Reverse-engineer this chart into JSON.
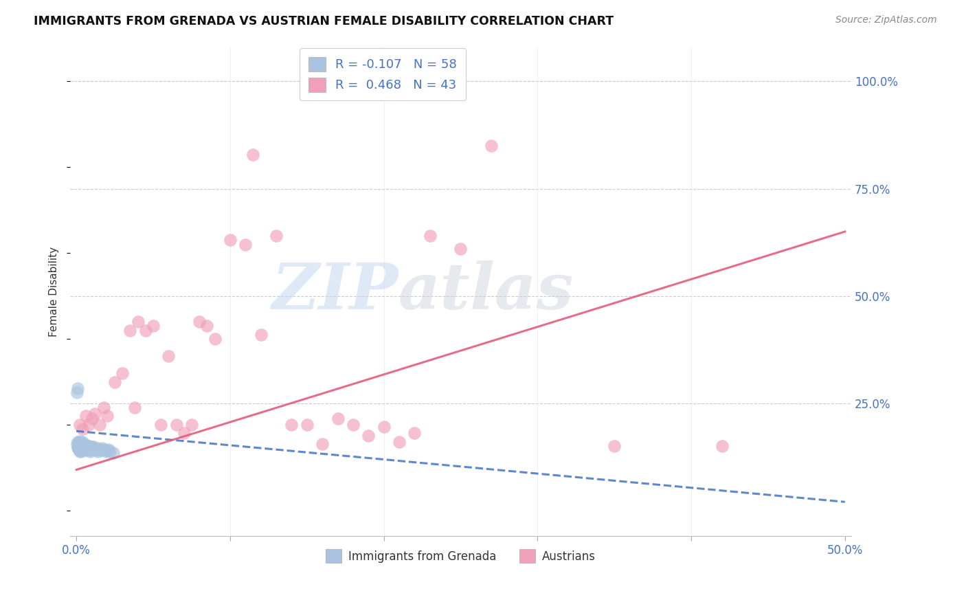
{
  "title": "IMMIGRANTS FROM GRENADA VS AUSTRIAN FEMALE DISABILITY CORRELATION CHART",
  "source": "Source: ZipAtlas.com",
  "ylabel": "Female Disability",
  "R1": "-0.107",
  "N1": "58",
  "R2": "0.468",
  "N2": "43",
  "blue_color": "#aac4e0",
  "blue_line_color": "#4472c4",
  "pink_color": "#f0a0b8",
  "pink_line_color": "#e05575",
  "watermark_zip": "ZIP",
  "watermark_atlas": "atlas",
  "legend_label1": "Immigrants from Grenada",
  "legend_label2": "Austrians",
  "xlim": [
    -0.004,
    0.504
  ],
  "ylim": [
    -0.06,
    1.08
  ],
  "blue_line_x0": 0.0,
  "blue_line_x1": 0.5,
  "blue_line_y0": 0.185,
  "blue_line_y1": 0.02,
  "pink_line_x0": 0.0,
  "pink_line_x1": 0.5,
  "pink_line_y0": 0.095,
  "pink_line_y1": 0.65,
  "blue_scatter_x": [
    0.0005,
    0.001,
    0.0008,
    0.0012,
    0.0015,
    0.001,
    0.002,
    0.0015,
    0.002,
    0.0025,
    0.002,
    0.0018,
    0.003,
    0.0022,
    0.003,
    0.0028,
    0.004,
    0.0032,
    0.003,
    0.0038,
    0.004,
    0.0042,
    0.005,
    0.0048,
    0.004,
    0.005,
    0.006,
    0.0052,
    0.005,
    0.006,
    0.007,
    0.006,
    0.007,
    0.008,
    0.007,
    0.008,
    0.009,
    0.0085,
    0.009,
    0.01,
    0.0095,
    0.011,
    0.012,
    0.011,
    0.013,
    0.014,
    0.015,
    0.014,
    0.016,
    0.017,
    0.018,
    0.019,
    0.02,
    0.021,
    0.022,
    0.024,
    0.001,
    0.0005
  ],
  "blue_scatter_y": [
    0.155,
    0.16,
    0.148,
    0.152,
    0.158,
    0.145,
    0.162,
    0.142,
    0.15,
    0.155,
    0.138,
    0.143,
    0.158,
    0.14,
    0.152,
    0.145,
    0.16,
    0.138,
    0.148,
    0.142,
    0.155,
    0.148,
    0.152,
    0.145,
    0.14,
    0.155,
    0.15,
    0.142,
    0.148,
    0.145,
    0.152,
    0.14,
    0.148,
    0.145,
    0.142,
    0.15,
    0.138,
    0.145,
    0.142,
    0.148,
    0.14,
    0.145,
    0.142,
    0.148,
    0.14,
    0.145,
    0.142,
    0.138,
    0.14,
    0.145,
    0.142,
    0.138,
    0.14,
    0.142,
    0.138,
    0.135,
    0.285,
    0.275
  ],
  "pink_scatter_x": [
    0.002,
    0.004,
    0.006,
    0.008,
    0.01,
    0.012,
    0.015,
    0.018,
    0.02,
    0.025,
    0.03,
    0.035,
    0.038,
    0.04,
    0.045,
    0.05,
    0.055,
    0.06,
    0.065,
    0.07,
    0.075,
    0.08,
    0.085,
    0.09,
    0.1,
    0.11,
    0.115,
    0.12,
    0.13,
    0.14,
    0.15,
    0.16,
    0.17,
    0.18,
    0.19,
    0.2,
    0.21,
    0.22,
    0.23,
    0.25,
    0.27,
    0.35,
    0.42
  ],
  "pink_scatter_y": [
    0.2,
    0.19,
    0.22,
    0.2,
    0.215,
    0.225,
    0.2,
    0.24,
    0.22,
    0.3,
    0.32,
    0.42,
    0.24,
    0.44,
    0.42,
    0.43,
    0.2,
    0.36,
    0.2,
    0.18,
    0.2,
    0.44,
    0.43,
    0.4,
    0.63,
    0.62,
    0.83,
    0.41,
    0.64,
    0.2,
    0.2,
    0.155,
    0.215,
    0.2,
    0.175,
    0.195,
    0.16,
    0.18,
    0.64,
    0.61,
    0.85,
    0.15,
    0.15
  ],
  "x_tick_positions": [
    0.0,
    0.1,
    0.2,
    0.3,
    0.4,
    0.5
  ],
  "x_tick_labels": [
    "0.0%",
    "",
    "",
    "",
    "",
    "50.0%"
  ],
  "y_tick_positions": [
    0.0,
    0.25,
    0.5,
    0.75,
    1.0
  ],
  "y_tick_labels": [
    "",
    "25.0%",
    "50.0%",
    "75.0%",
    "100.0%"
  ]
}
